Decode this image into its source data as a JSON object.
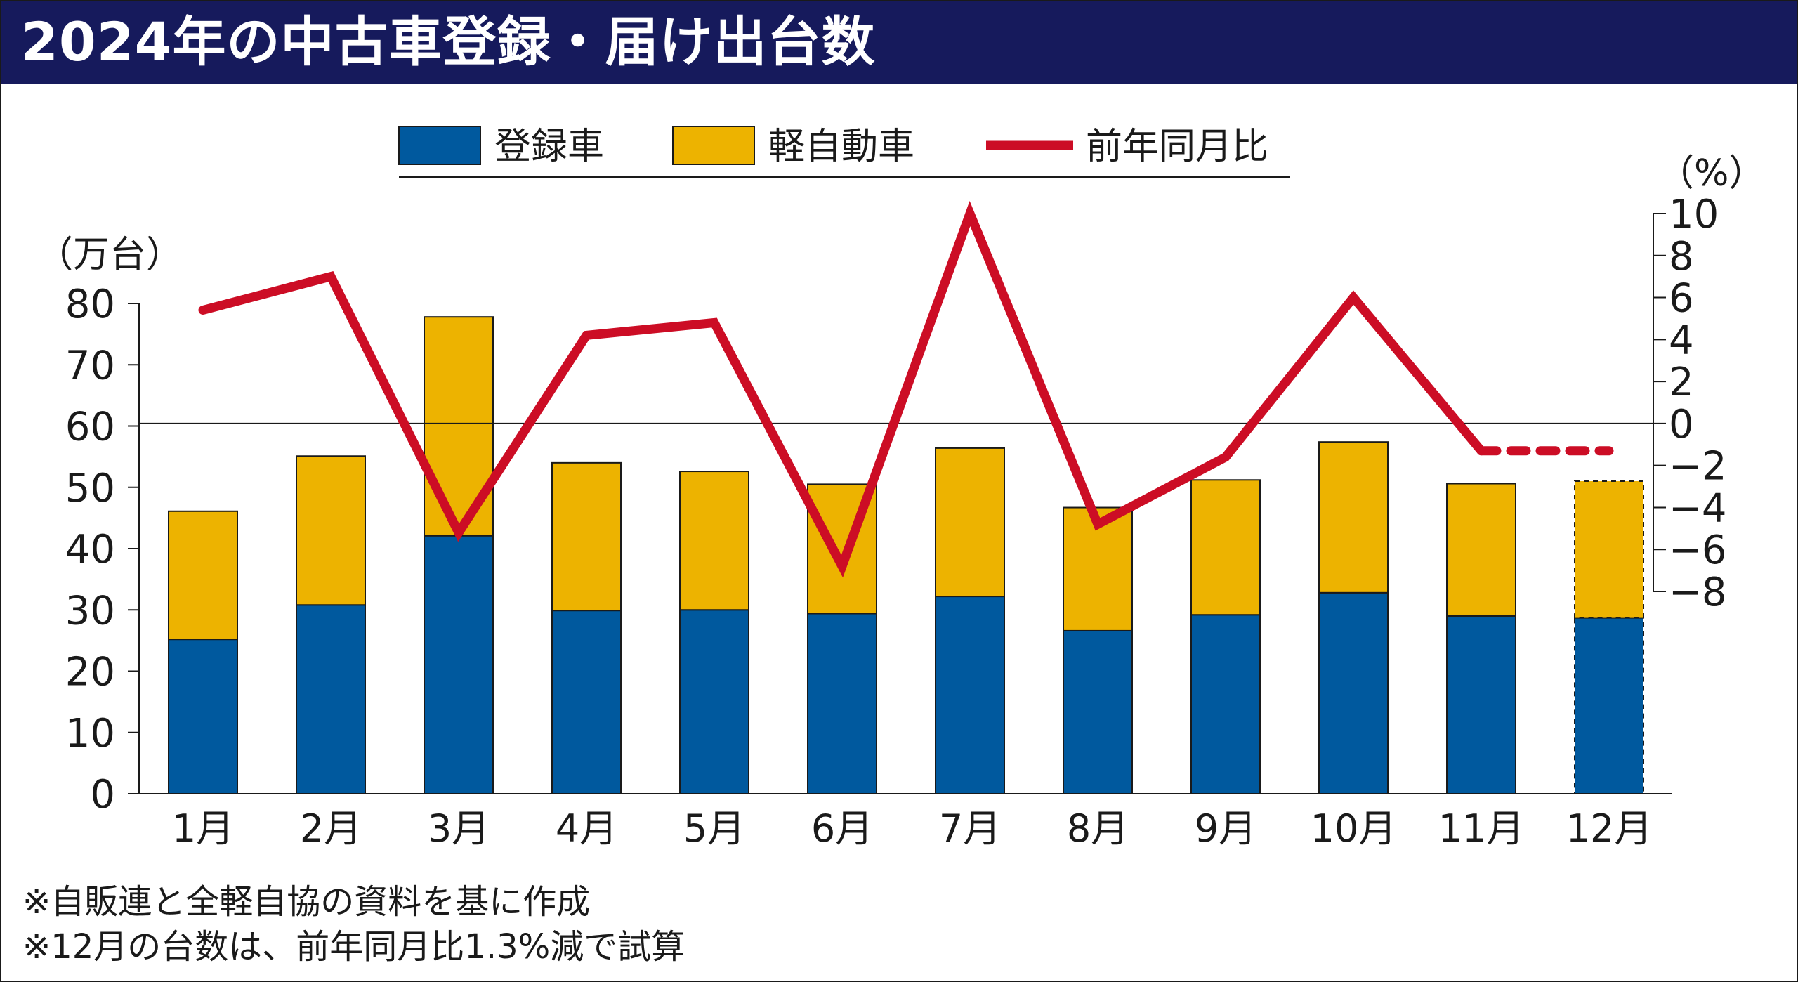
{
  "title": "2024年の中古車登録・届け出台数",
  "colors": {
    "title_bg": "#161a5c",
    "registered": "#00599e",
    "kei": "#edb300",
    "yoy_line": "#cc0d25",
    "axis": "#1a1a1a"
  },
  "notes": [
    "※自販連と全軽自協の資料を基に作成",
    "※12月の台数は、前年同月比1.3%減で試算"
  ],
  "chart_data": {
    "type": "bar",
    "stacked": true,
    "title": "2024年の中古車登録・届け出台数",
    "categories": [
      "1月",
      "2月",
      "3月",
      "4月",
      "5月",
      "6月",
      "7月",
      "8月",
      "9月",
      "10月",
      "11月",
      "12月"
    ],
    "series": [
      {
        "name": "登録車",
        "type": "bar",
        "axis": "left",
        "values": [
          25.2,
          30.8,
          42.1,
          29.9,
          30.0,
          29.4,
          32.2,
          26.6,
          29.2,
          32.8,
          29.0,
          28.7
        ],
        "estimated_last": true
      },
      {
        "name": "軽自動車",
        "type": "bar",
        "axis": "left",
        "values": [
          20.9,
          24.3,
          35.7,
          24.1,
          22.6,
          21.1,
          24.2,
          20.1,
          22.0,
          24.6,
          21.6,
          22.3
        ],
        "estimated_last": true
      },
      {
        "name": "前年同月比",
        "type": "line",
        "axis": "right",
        "values": [
          5.4,
          7.0,
          -5.2,
          4.2,
          4.8,
          -6.8,
          10.0,
          -4.8,
          -1.6,
          6.0,
          -1.3,
          -1.3
        ],
        "dashed_last_segment": true
      }
    ],
    "left_axis": {
      "label": "（万台）",
      "min": 0,
      "max": 80,
      "ticks": [
        0,
        10,
        20,
        30,
        40,
        50,
        60,
        70,
        80
      ]
    },
    "right_axis": {
      "label": "（%）",
      "min": -8,
      "max": 10,
      "ticks": [
        10,
        8,
        6,
        4,
        2,
        0,
        -2,
        -4,
        -6,
        -8
      ],
      "tick_labels": [
        "10",
        "8",
        "6",
        "4",
        "2",
        "0",
        "−2",
        "−4",
        "−6",
        "−8"
      ]
    },
    "legend": {
      "position": "top-center",
      "entries": [
        "登録車",
        "軽自動車",
        "前年同月比"
      ]
    },
    "reference_line": "zero of right axis"
  }
}
